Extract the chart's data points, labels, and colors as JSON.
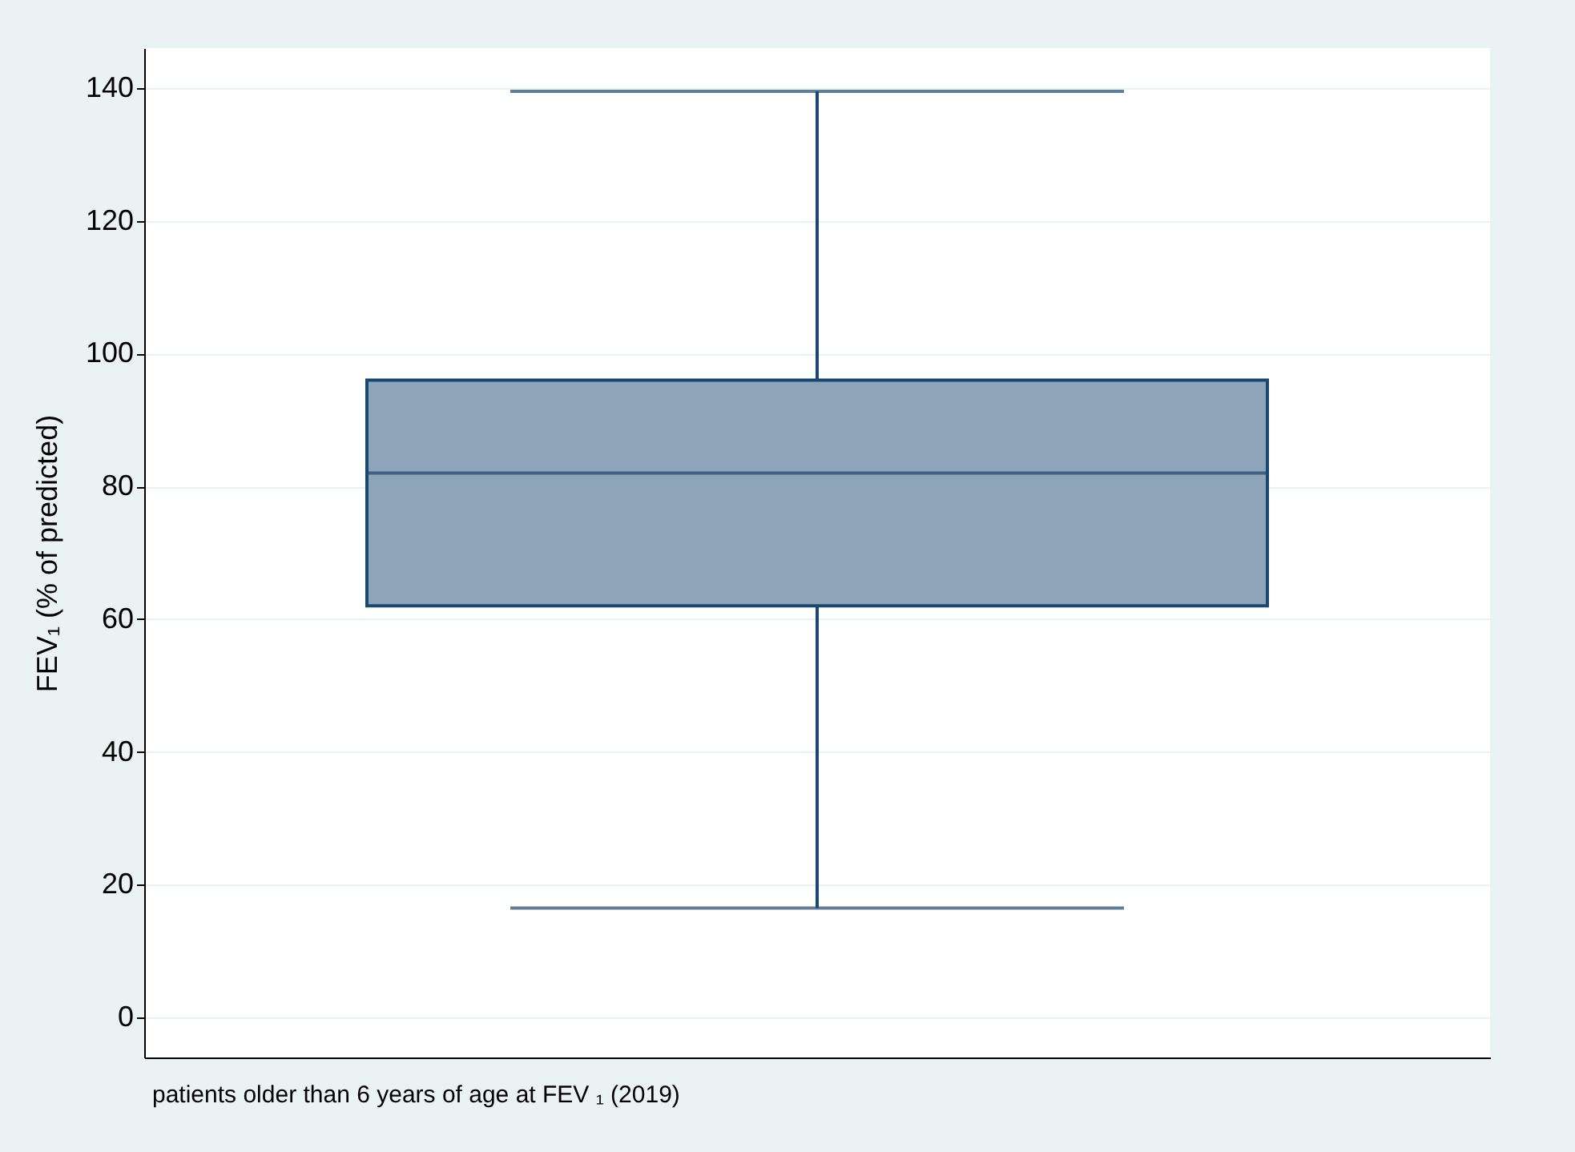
{
  "chart_data": {
    "type": "box",
    "ylabel": "FEV₁ (% of predicted)",
    "annotations": [
      "patients older than 6 years of age at FEV ₁ (2019)"
    ],
    "categories": [
      null
    ],
    "boxes": [
      {
        "low": 16.5,
        "q1": 62,
        "median": 82,
        "q3": 96,
        "high": 139.5
      }
    ],
    "color": "#8ea5b9",
    "ylim": [
      -6,
      146
    ],
    "yticks": [
      0,
      20,
      40,
      60,
      80,
      100,
      120,
      140
    ],
    "grid": "y"
  }
}
